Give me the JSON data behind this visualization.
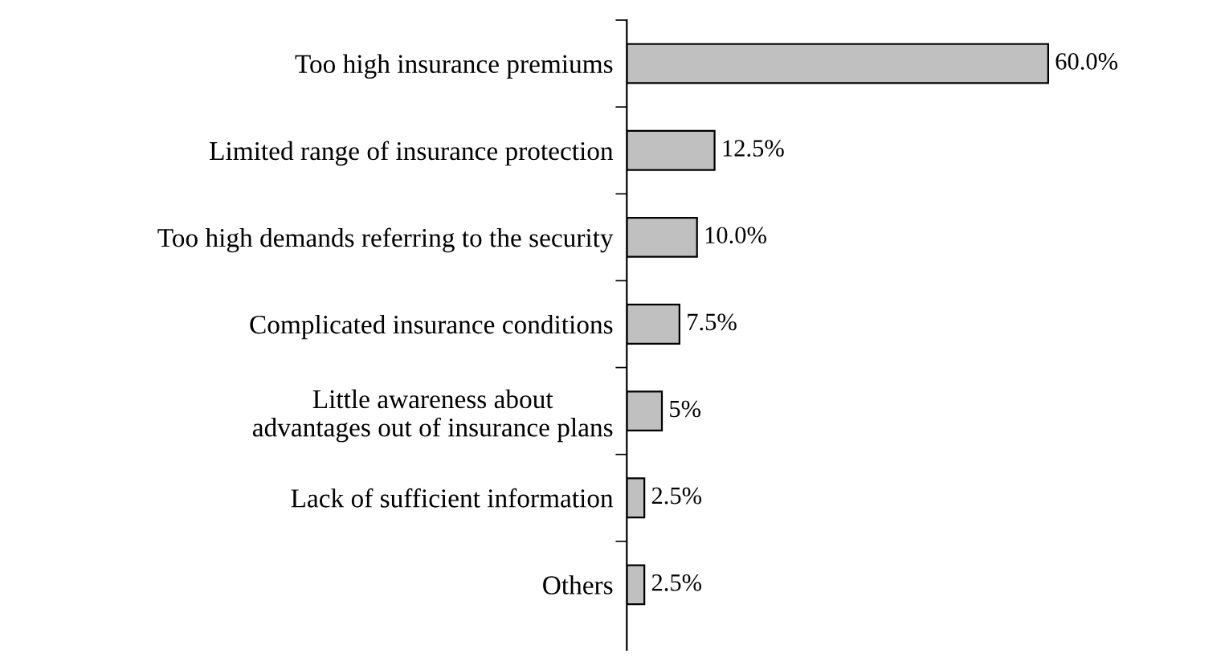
{
  "chart_data": {
    "type": "bar",
    "orientation": "horizontal",
    "categories": [
      "Too high insurance premiums",
      "Limited range of insurance protection",
      "Too high demands referring to the security",
      "Complicated insurance conditions",
      "Little awareness about\nadvantages out of insurance plans",
      "Lack of sufficient information",
      "Others"
    ],
    "values": [
      60.0,
      12.5,
      10.0,
      7.5,
      5,
      2.5,
      2.5
    ],
    "value_labels": [
      "60.0%",
      "12.5%",
      "10.0%",
      "7.5%",
      "5%",
      "2.5%",
      "2.5%"
    ],
    "color": "#c0c0c0",
    "grid": false,
    "legend": false
  }
}
